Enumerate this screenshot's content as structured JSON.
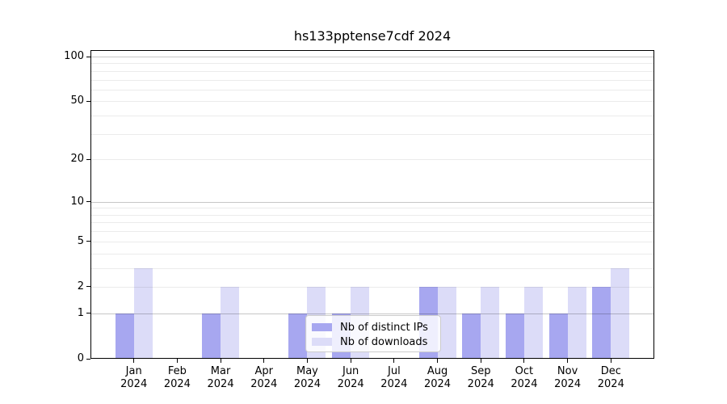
{
  "chart_data": {
    "type": "bar",
    "title": "hs133pptense7cdf 2024",
    "x_tick_months": [
      "Jan",
      "Feb",
      "Mar",
      "Apr",
      "May",
      "Jun",
      "Jul",
      "Aug",
      "Sep",
      "Oct",
      "Nov",
      "Dec"
    ],
    "x_tick_year": "2024",
    "series": [
      {
        "name": "Nb of distinct IPs",
        "color": "#a7a7f0",
        "values": [
          1,
          0,
          1,
          0,
          1,
          1,
          0,
          2,
          1,
          1,
          1,
          2
        ]
      },
      {
        "name": "Nb of downloads",
        "color": "#dcdcf8",
        "values": [
          3,
          0,
          2,
          0,
          2,
          2,
          0,
          2,
          2,
          2,
          2,
          3
        ]
      }
    ],
    "yscale": "log1p",
    "ylim": [
      0,
      100
    ],
    "y_tick_values": [
      0,
      1,
      2,
      5,
      10,
      20,
      50,
      100
    ],
    "y_major_grid_values": [
      1,
      10,
      100
    ],
    "y_minor_grid_values": [
      2,
      3,
      4,
      5,
      6,
      7,
      8,
      9,
      20,
      30,
      40,
      50,
      60,
      70,
      80,
      90
    ],
    "grid": true,
    "legend_position": "lower center"
  },
  "legend": {
    "items": [
      {
        "label": "Nb of distinct IPs",
        "color": "#a7a7f0"
      },
      {
        "label": "Nb of downloads",
        "color": "#dcdcf8"
      }
    ]
  },
  "colors": {
    "grid_major": "rgba(0,0,0,0.22)",
    "grid_minor": "rgba(0,0,0,0.08)",
    "axis": "#000000",
    "background": "#ffffff"
  }
}
